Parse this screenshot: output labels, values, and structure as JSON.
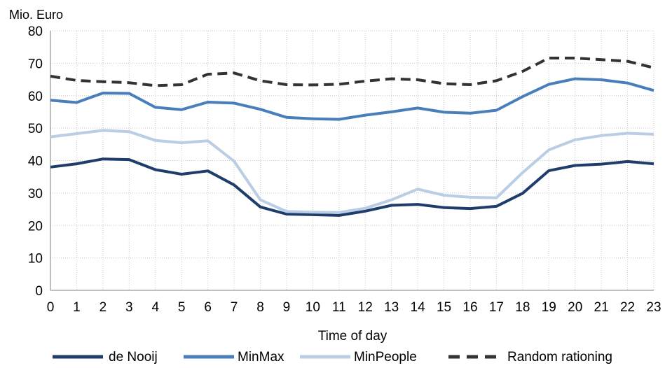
{
  "chart_data": {
    "type": "line",
    "title": "",
    "ylabel": "Mio. Euro",
    "xlabel": "Time of day",
    "ylim": [
      0,
      80
    ],
    "yticks": [
      0,
      10,
      20,
      30,
      40,
      50,
      60,
      70,
      80
    ],
    "x": [
      0,
      1,
      2,
      3,
      4,
      5,
      6,
      7,
      8,
      9,
      10,
      11,
      12,
      13,
      14,
      15,
      16,
      17,
      18,
      19,
      20,
      21,
      22,
      23
    ],
    "x_tick_labels": [
      "0",
      "1",
      "2",
      "3",
      "4",
      "5",
      "6",
      "7",
      "8",
      "9",
      "10",
      "11",
      "12",
      "13",
      "14",
      "15",
      "16",
      "17",
      "18",
      "19",
      "20",
      "21",
      "22",
      "23"
    ],
    "grid": true,
    "legend_position": "bottom",
    "series": [
      {
        "name": "de Nooij",
        "color": "#1f3d6b",
        "style": "solid",
        "values": [
          38.0,
          39.0,
          40.5,
          40.3,
          37.2,
          35.8,
          36.8,
          32.5,
          25.7,
          23.5,
          23.3,
          23.1,
          24.4,
          26.2,
          26.5,
          25.5,
          25.2,
          25.9,
          29.9,
          36.9,
          38.5,
          38.9,
          39.7,
          39.0
        ]
      },
      {
        "name": "MinMax",
        "color": "#4a7ebb",
        "style": "solid",
        "values": [
          58.6,
          57.9,
          60.8,
          60.7,
          56.4,
          55.7,
          58.0,
          57.7,
          55.8,
          53.3,
          52.9,
          52.7,
          54.0,
          55.0,
          56.2,
          54.9,
          54.6,
          55.5,
          59.7,
          63.5,
          65.2,
          64.9,
          63.9,
          61.6
        ]
      },
      {
        "name": "MinPeople",
        "color": "#b9cde5",
        "style": "solid",
        "values": [
          47.3,
          48.3,
          49.3,
          48.9,
          46.2,
          45.5,
          46.1,
          39.8,
          27.9,
          24.3,
          24.1,
          24.0,
          25.3,
          27.9,
          31.2,
          29.3,
          28.7,
          28.5,
          36.3,
          43.3,
          46.4,
          47.7,
          48.4,
          48.1
        ]
      },
      {
        "name": "Random rationing",
        "color": "#333333",
        "style": "dashed",
        "values": [
          66.0,
          64.7,
          64.3,
          64.0,
          63.1,
          63.4,
          66.6,
          67.0,
          64.6,
          63.4,
          63.3,
          63.5,
          64.5,
          65.2,
          64.9,
          63.7,
          63.4,
          64.6,
          67.5,
          71.6,
          71.6,
          71.1,
          70.6,
          68.6
        ]
      }
    ]
  }
}
